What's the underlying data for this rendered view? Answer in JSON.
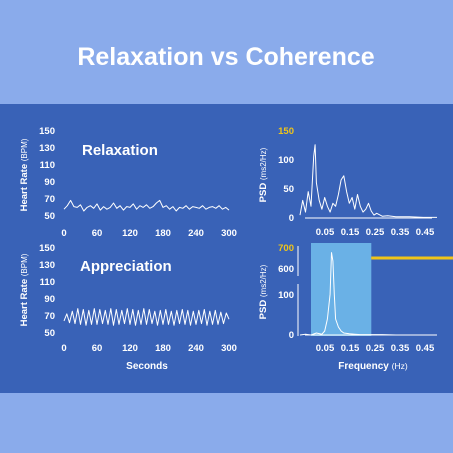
{
  "title": "Relaxation vs Coherence",
  "colors": {
    "banner": "#8aabeb",
    "panel": "#3962b7",
    "trace": "#ffffff",
    "tick_label": "#ffffff",
    "highlight_label": "#f0c419",
    "highlight_box": "#6ab1e6",
    "highlight_line": "#f0c419"
  },
  "chart_data": [
    {
      "id": "hr-relaxation",
      "type": "line",
      "annotation": "Relaxation",
      "xlabel": "",
      "ylabel": "Heart Rate",
      "ylabel_unit": "(BPM)",
      "xlim": [
        0,
        300
      ],
      "ylim": [
        50,
        150
      ],
      "xticks": [
        "0",
        "60",
        "120",
        "180",
        "240",
        "300"
      ],
      "yticks": [
        "150",
        "130",
        "110",
        "90",
        "70",
        "50"
      ],
      "series": [
        {
          "x": [
            0,
            6,
            12,
            18,
            24,
            30,
            36,
            42,
            48,
            54,
            60,
            66,
            72,
            78,
            84,
            90,
            96,
            102,
            108,
            114,
            120,
            126,
            132,
            138,
            144,
            150,
            156,
            162,
            168,
            174,
            180,
            186,
            192,
            198,
            204,
            210,
            216,
            222,
            228,
            234,
            240,
            246,
            252,
            258,
            264,
            270,
            276,
            282,
            288,
            294,
            300
          ],
          "y": [
            60,
            64,
            70,
            63,
            62,
            65,
            58,
            62,
            64,
            61,
            66,
            59,
            63,
            60,
            62,
            67,
            61,
            64,
            59,
            63,
            62,
            66,
            60,
            64,
            62,
            65,
            61,
            63,
            67,
            70,
            62,
            64,
            60,
            63,
            58,
            62,
            61,
            64,
            60,
            63,
            62,
            61,
            64,
            60,
            62,
            63,
            61,
            64,
            60,
            62,
            59
          ]
        }
      ]
    },
    {
      "id": "hr-appreciation",
      "type": "line",
      "annotation": "Appreciation",
      "xlabel": "Seconds",
      "ylabel": "Heart Rate",
      "ylabel_unit": "(BPM)",
      "xlim": [
        0,
        300
      ],
      "ylim": [
        50,
        150
      ],
      "xticks": [
        "0",
        "60",
        "120",
        "180",
        "240",
        "300"
      ],
      "yticks": [
        "150",
        "130",
        "110",
        "90",
        "70",
        "50"
      ],
      "series": [
        {
          "x": [
            0,
            5,
            10,
            15,
            20,
            25,
            30,
            35,
            40,
            45,
            50,
            55,
            60,
            65,
            70,
            75,
            80,
            85,
            90,
            95,
            100,
            105,
            110,
            115,
            120,
            125,
            130,
            135,
            140,
            145,
            150,
            155,
            160,
            165,
            170,
            175,
            180,
            185,
            190,
            195,
            200,
            205,
            210,
            215,
            220,
            225,
            230,
            235,
            240,
            245,
            250,
            255,
            260,
            265,
            270,
            275,
            280,
            285,
            290,
            295,
            300
          ],
          "y": [
            66,
            74,
            64,
            77,
            63,
            80,
            62,
            79,
            61,
            78,
            62,
            80,
            62,
            79,
            63,
            78,
            62,
            80,
            61,
            79,
            62,
            78,
            63,
            80,
            62,
            79,
            61,
            78,
            62,
            80,
            62,
            79,
            63,
            77,
            61,
            78,
            62,
            79,
            62,
            77,
            61,
            78,
            63,
            79,
            62,
            78,
            61,
            77,
            62,
            78,
            63,
            79,
            61,
            77,
            62,
            78,
            62,
            76,
            63,
            75,
            68
          ]
        }
      ]
    },
    {
      "id": "psd-relaxation",
      "type": "line",
      "xlabel": "",
      "ylabel": "PSD",
      "ylabel_unit": "(ms2/Hz)",
      "xlim": [
        0,
        0.5
      ],
      "ylim": [
        0,
        150
      ],
      "yticks_plain": [
        "100",
        "50",
        "0"
      ],
      "yticks_highlight": [
        "150"
      ],
      "xticks": [
        "0.05",
        "0.15",
        "0.25",
        "0.35",
        "0.45"
      ],
      "series": [
        {
          "x": [
            0.0,
            0.01,
            0.02,
            0.03,
            0.04,
            0.05,
            0.055,
            0.06,
            0.07,
            0.08,
            0.09,
            0.1,
            0.11,
            0.12,
            0.13,
            0.14,
            0.15,
            0.16,
            0.17,
            0.18,
            0.19,
            0.2,
            0.21,
            0.22,
            0.23,
            0.24,
            0.25,
            0.26,
            0.27,
            0.28,
            0.3,
            0.32,
            0.35,
            0.4,
            0.45,
            0.5
          ],
          "y": [
            5,
            30,
            10,
            45,
            20,
            105,
            125,
            60,
            30,
            15,
            35,
            20,
            10,
            25,
            20,
            40,
            65,
            72,
            45,
            25,
            35,
            15,
            40,
            20,
            10,
            15,
            25,
            12,
            5,
            8,
            3,
            4,
            2,
            2,
            1,
            1
          ]
        }
      ]
    },
    {
      "id": "psd-appreciation",
      "type": "line",
      "xlabel": "Frequency",
      "xlabel_unit": "(Hz)",
      "ylabel": "PSD",
      "ylabel_unit": "(ms2/Hz)",
      "xlim": [
        0,
        0.5
      ],
      "ylim": [
        0,
        700
      ],
      "yticks_plain": [
        "600",
        "100",
        "0"
      ],
      "yticks_highlight": [
        "700"
      ],
      "xticks": [
        "0.05",
        "0.15",
        "0.25",
        "0.35",
        "0.45"
      ],
      "highlight_band": [
        0.04,
        0.26
      ],
      "series": [
        {
          "x": [
            0.0,
            0.02,
            0.04,
            0.06,
            0.08,
            0.09,
            0.1,
            0.11,
            0.115,
            0.12,
            0.125,
            0.13,
            0.14,
            0.15,
            0.16,
            0.18,
            0.2,
            0.22,
            0.25,
            0.3,
            0.35,
            0.4,
            0.45,
            0.5
          ],
          "y": [
            0,
            2,
            0,
            5,
            2,
            10,
            40,
            120,
            680,
            650,
            110,
            40,
            20,
            10,
            5,
            3,
            2,
            1,
            1,
            1,
            0,
            0,
            0,
            0
          ]
        }
      ]
    }
  ]
}
